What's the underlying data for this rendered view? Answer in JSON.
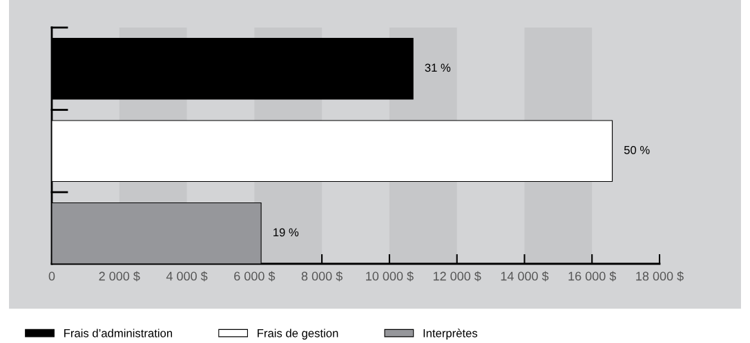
{
  "chart_data": {
    "type": "bar",
    "orientation": "horizontal",
    "stacked": true,
    "categories": [
      null,
      null,
      null
    ],
    "series": [
      {
        "name": "Frais d’administration",
        "color": "#000000",
        "values": [
          10700,
          null,
          null
        ]
      },
      {
        "name": "Frais de gestion",
        "color": "#ffffff",
        "values": [
          null,
          16600,
          null
        ]
      },
      {
        "name": "Interprètes",
        "color": "#96979b",
        "values": [
          null,
          null,
          6200
        ]
      }
    ],
    "annotations": [
      {
        "text": "31 %",
        "x": 10700
      },
      {
        "text": "50 %",
        "x": 16600
      },
      {
        "text": "19 %",
        "x": 6200
      }
    ],
    "xlim": [
      0,
      18000
    ],
    "xticks": [
      0,
      {
        "value": 2000,
        "label": "2 000 $"
      },
      {
        "value": 4000,
        "label": "4 000 $"
      },
      {
        "value": 6000,
        "label": "6 000 $"
      },
      {
        "value": 8000,
        "label": "8 000 $"
      },
      {
        "value": 10000,
        "label": "10 000 $"
      },
      {
        "value": 12000,
        "label": "12 000 $"
      },
      {
        "value": 14000,
        "label": "14 000 $"
      },
      {
        "value": 16000,
        "label": "16 000 $"
      },
      {
        "value": 18000,
        "label": "18 000 $"
      }
    ],
    "bands": [
      {
        "axis": "x",
        "from": 2000,
        "to": 4000,
        "color": "#c6c7c9"
      },
      {
        "axis": "x",
        "from": 6000,
        "to": 8000,
        "color": "#c6c7c9"
      },
      {
        "axis": "x",
        "from": 10000,
        "to": 12000,
        "color": "#c6c7c9"
      },
      {
        "axis": "x",
        "from": 14000,
        "to": 16000,
        "color": "#c6c7c9"
      }
    ],
    "grid": false,
    "legend": "bottom left"
  }
}
